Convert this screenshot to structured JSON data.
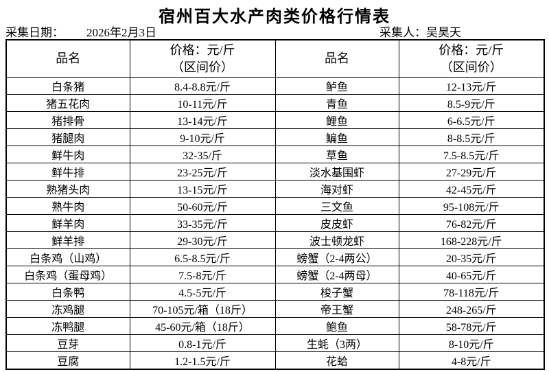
{
  "title": "宿州百大水产肉类价格行情表",
  "meta": {
    "date_label": "采集日期：",
    "date_value": "2026年2月3日",
    "collector_label": "采集人：",
    "collector_value": "吴昊天"
  },
  "table": {
    "headers": {
      "name": "品名",
      "price_line1": "价格：元/斤",
      "price_line2": "（区间价）"
    },
    "left_rows": [
      {
        "name": "白条猪",
        "price": "8.4-8.8元/斤"
      },
      {
        "name": "猪五花肉",
        "price": "10-11元/斤"
      },
      {
        "name": "猪排骨",
        "price": "13-14元/斤"
      },
      {
        "name": "猪腿肉",
        "price": "9-10元/斤"
      },
      {
        "name": "鲜牛肉",
        "price": "32-35/斤"
      },
      {
        "name": "鲜牛排",
        "price": "23-25元/斤"
      },
      {
        "name": "熟猪头肉",
        "price": "13-15元/斤"
      },
      {
        "name": "熟牛肉",
        "price": "50-60元/斤"
      },
      {
        "name": "鲜羊肉",
        "price": "33-35元/斤"
      },
      {
        "name": "鲜羊排",
        "price": "29-30元/斤"
      },
      {
        "name": "白条鸡（山鸡）",
        "price": "6.5-8.5元/斤"
      },
      {
        "name": "白条鸡（蛋母鸡）",
        "price": "7.5-8元/斤"
      },
      {
        "name": "白条鸭",
        "price": "4.5-5元/斤"
      },
      {
        "name": "冻鸡腿",
        "price": "70-105元/箱（18斤）"
      },
      {
        "name": "冻鸭腿",
        "price": "45-60元/箱（18斤）"
      },
      {
        "name": "豆芽",
        "price": "0.8-1元/斤"
      },
      {
        "name": "豆腐",
        "price": "1.2-1.5元/斤"
      }
    ],
    "right_rows": [
      {
        "name": "鲈鱼",
        "price": "12-13元/斤"
      },
      {
        "name": "青鱼",
        "price": "8.5-9元/斤"
      },
      {
        "name": "鲤鱼",
        "price": "6-6.5元/斤"
      },
      {
        "name": "鳊鱼",
        "price": "8-8.5元/斤"
      },
      {
        "name": "草鱼",
        "price": "7.5-8.5元/斤"
      },
      {
        "name": "淡水基围虾",
        "price": "27-29元/斤"
      },
      {
        "name": "海对虾",
        "price": "42-45元/斤"
      },
      {
        "name": "三文鱼",
        "price": "95-108元/斤"
      },
      {
        "name": "皮皮虾",
        "price": "76-82元/斤"
      },
      {
        "name": "波士顿龙虾",
        "price": "168-228元/斤"
      },
      {
        "name": "螃蟹（2-4两公）",
        "price": "20-35元/斤"
      },
      {
        "name": "螃蟹（2-4两母）",
        "price": "40-65元/斤"
      },
      {
        "name": "梭子蟹",
        "price": "78-118元/斤"
      },
      {
        "name": "帝王蟹",
        "price": "248-265/斤"
      },
      {
        "name": "鲍鱼",
        "price": "58-78元/斤"
      },
      {
        "name": "生蚝（3两）",
        "price": "8-10元/斤"
      },
      {
        "name": "花蛤",
        "price": "4-8元/斤"
      }
    ]
  }
}
